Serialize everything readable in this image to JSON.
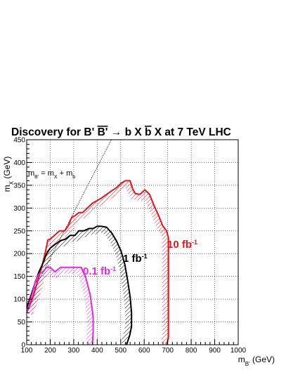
{
  "chart_data": {
    "type": "line",
    "title_parts": [
      "Discovery for B' ",
      "B'",
      " → b X ",
      "b",
      " X at 7 TeV LHC"
    ],
    "xlabel": {
      "main": "m",
      "sub": "B'",
      "unit": " (GeV)"
    },
    "ylabel": {
      "main": "m",
      "sub": "X",
      "unit": " (GeV)"
    },
    "xlim": [
      100,
      1000
    ],
    "ylim": [
      0,
      450
    ],
    "x_ticks": [
      100,
      200,
      300,
      400,
      500,
      600,
      700,
      800,
      900,
      1000
    ],
    "y_ticks": [
      0,
      50,
      100,
      150,
      200,
      250,
      300,
      350,
      400,
      450
    ],
    "grid": true,
    "annotations": [
      {
        "id": "kinematic-limit-label",
        "parts": [
          "m",
          "B'",
          " = m",
          "X",
          " + m",
          "b"
        ],
        "color": "#000000"
      }
    ],
    "diagonal_line": {
      "name": "kinematic-limit",
      "x": [
        100,
        470
      ],
      "y": [
        90,
        460
      ]
    },
    "series": [
      {
        "name": "10 fb",
        "label_parts": [
          "10 fb",
          "-1"
        ],
        "color": "#e8141e",
        "hatch_side": "inner",
        "x": [
          100,
          125,
          140,
          152,
          165,
          180,
          190,
          200,
          218,
          240,
          262,
          278,
          292,
          305,
          322,
          338,
          358,
          378,
          398,
          418,
          440,
          462,
          483,
          503,
          520,
          540,
          550,
          562,
          582,
          603,
          623,
          642,
          660,
          678,
          695,
          703,
          703,
          695
        ],
        "y": [
          70,
          102,
          128,
          150,
          172,
          205,
          230,
          232,
          240,
          250,
          250,
          262,
          280,
          283,
          290,
          290,
          300,
          310,
          316,
          322,
          330,
          338,
          345,
          355,
          360,
          360,
          343,
          332,
          330,
          340,
          330,
          305,
          285,
          262,
          250,
          235,
          15,
          0
        ]
      },
      {
        "name": "1 fb",
        "label_parts": [
          "1 fb",
          "-1"
        ],
        "color": "#000000",
        "hatch_side": "inner",
        "x": [
          100,
          118,
          135,
          152,
          170,
          185,
          200,
          220,
          242,
          265,
          285,
          305,
          322,
          343,
          365,
          383,
          400,
          418,
          440,
          462,
          482,
          502,
          518,
          530,
          540,
          546,
          546,
          538,
          525
        ],
        "y": [
          80,
          108,
          135,
          160,
          180,
          200,
          212,
          220,
          228,
          232,
          240,
          240,
          250,
          250,
          255,
          255,
          260,
          260,
          258,
          245,
          228,
          205,
          175,
          140,
          105,
          70,
          40,
          20,
          0
        ]
      },
      {
        "name": "0.1 fb",
        "label_parts": [
          "0.1 fb",
          "-1"
        ],
        "color": "#e628e6",
        "hatch_side": "inner",
        "x": [
          100,
          112,
          125,
          137,
          152,
          170,
          185,
          200,
          220,
          245,
          265,
          285,
          305,
          320,
          332,
          340,
          350,
          360,
          370,
          378,
          383,
          383,
          380
        ],
        "y": [
          70,
          92,
          115,
          140,
          155,
          160,
          170,
          170,
          160,
          170,
          170,
          170,
          170,
          170,
          170,
          160,
          150,
          130,
          110,
          80,
          60,
          30,
          0
        ]
      }
    ]
  }
}
